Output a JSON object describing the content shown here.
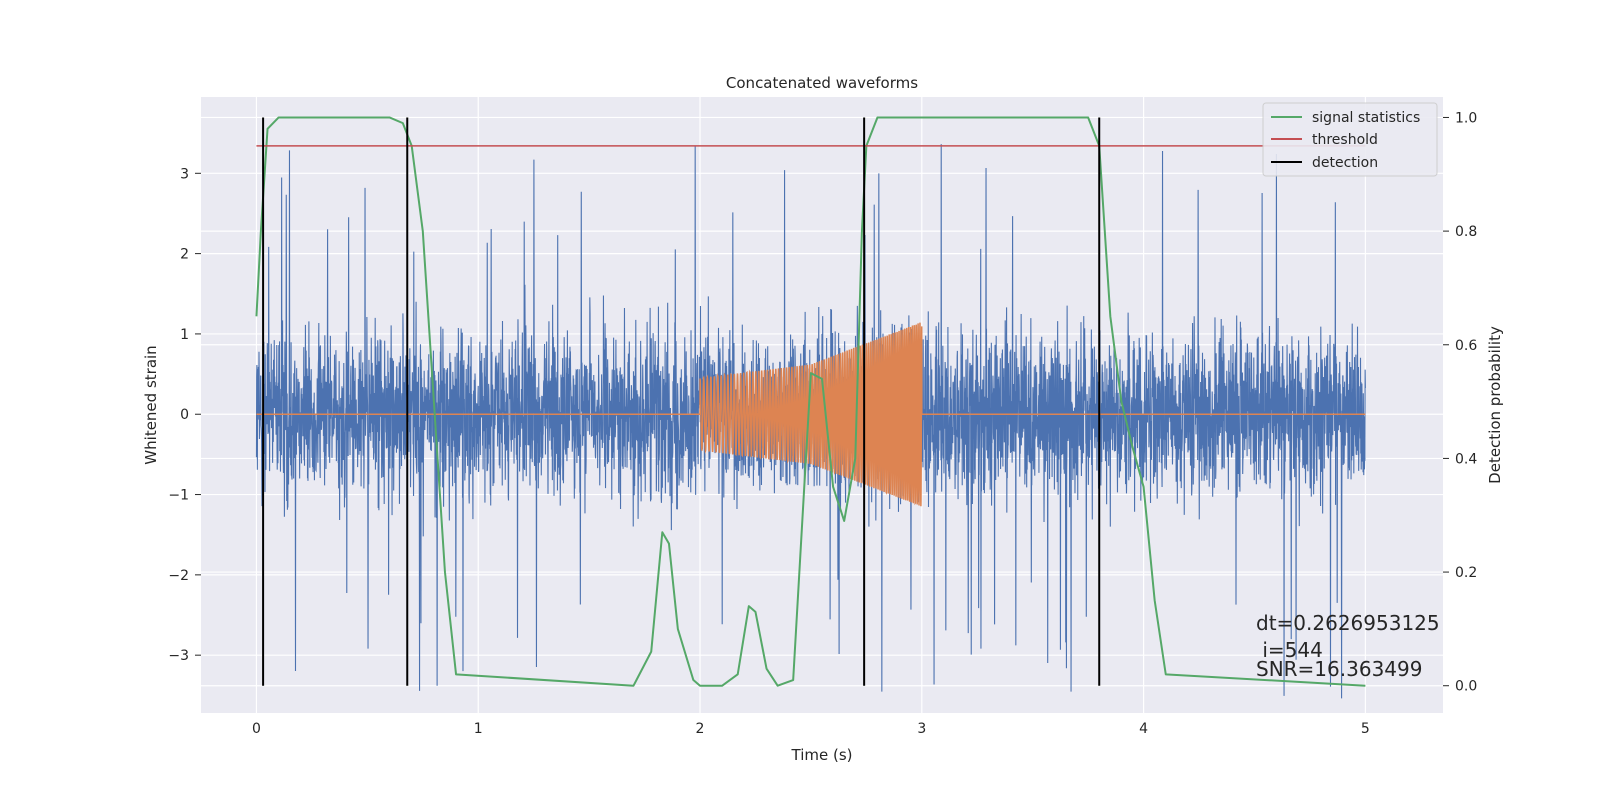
{
  "chart_data": {
    "type": "line",
    "title": "Concatenated waveforms",
    "xlabel": "Time (s)",
    "ylabel": "Whitened strain",
    "y2label": "Detection probability",
    "xlim": [
      -0.25,
      5.35
    ],
    "ylim": [
      -3.72,
      3.95
    ],
    "y2lim": [
      -0.048,
      1.036
    ],
    "xticks": [
      "0",
      "1",
      "2",
      "3",
      "4",
      "5"
    ],
    "yticks": [
      "3",
      "2",
      "1",
      "0",
      "−1",
      "−2",
      "−3"
    ],
    "y2ticks": [
      "1.0",
      "0.8",
      "0.6",
      "0.4",
      "0.2",
      "0.0"
    ],
    "grid": true,
    "legend_position": "top-right",
    "legend": [
      "signal statistics",
      "threshold",
      "detection"
    ],
    "colors": {
      "noise": "#4c72b0",
      "injection": "#dd8452",
      "signal_statistics": "#55a868",
      "threshold": "#c44e52",
      "detection": "#000000",
      "background": "#eaeaf2"
    },
    "series": [
      {
        "role": "whitened noise strain (left axis)",
        "x_range": [
          0,
          5
        ],
        "envelope_approx": {
          "typical_abs": 0.8,
          "peak_abs": 3.6
        }
      },
      {
        "role": "injected chirp (left axis)",
        "x": [
          0,
          2.0,
          2.0,
          2.5,
          3.0,
          3.0,
          5.0
        ],
        "amplitude": [
          0,
          0,
          0.45,
          0.62,
          1.15,
          0,
          0
        ]
      },
      {
        "name": "signal statistics",
        "axis": "right",
        "x": [
          0,
          0.02,
          0.05,
          0.1,
          0.15,
          0.6,
          0.66,
          0.7,
          0.75,
          0.8,
          0.85,
          0.9,
          1.7,
          1.78,
          1.83,
          1.86,
          1.9,
          1.97,
          2.0,
          2.1,
          2.17,
          2.22,
          2.25,
          2.3,
          2.35,
          2.42,
          2.47,
          2.5,
          2.55,
          2.6,
          2.65,
          2.7,
          2.73,
          2.75,
          2.8,
          3.75,
          3.8,
          3.85,
          3.9,
          3.95,
          4.0,
          4.05,
          4.1,
          5.0
        ],
        "y": [
          0.65,
          0.8,
          0.98,
          1.0,
          1.0,
          1.0,
          0.99,
          0.95,
          0.8,
          0.5,
          0.2,
          0.02,
          0.0,
          0.06,
          0.27,
          0.25,
          0.1,
          0.01,
          0.0,
          0.0,
          0.02,
          0.14,
          0.13,
          0.03,
          0.0,
          0.01,
          0.35,
          0.55,
          0.54,
          0.35,
          0.29,
          0.4,
          0.8,
          0.95,
          1.0,
          1.0,
          0.95,
          0.65,
          0.5,
          0.42,
          0.35,
          0.15,
          0.02,
          0.0
        ]
      },
      {
        "name": "threshold",
        "axis": "right",
        "x": [
          0,
          5
        ],
        "y": [
          0.95,
          0.95
        ]
      },
      {
        "name": "detection",
        "type": "vlines",
        "x": [
          0.03,
          0.68,
          2.74,
          3.8
        ]
      }
    ],
    "annotations": [
      "dt=0.2626953125",
      " i=544",
      "SNR=16.363499"
    ]
  }
}
